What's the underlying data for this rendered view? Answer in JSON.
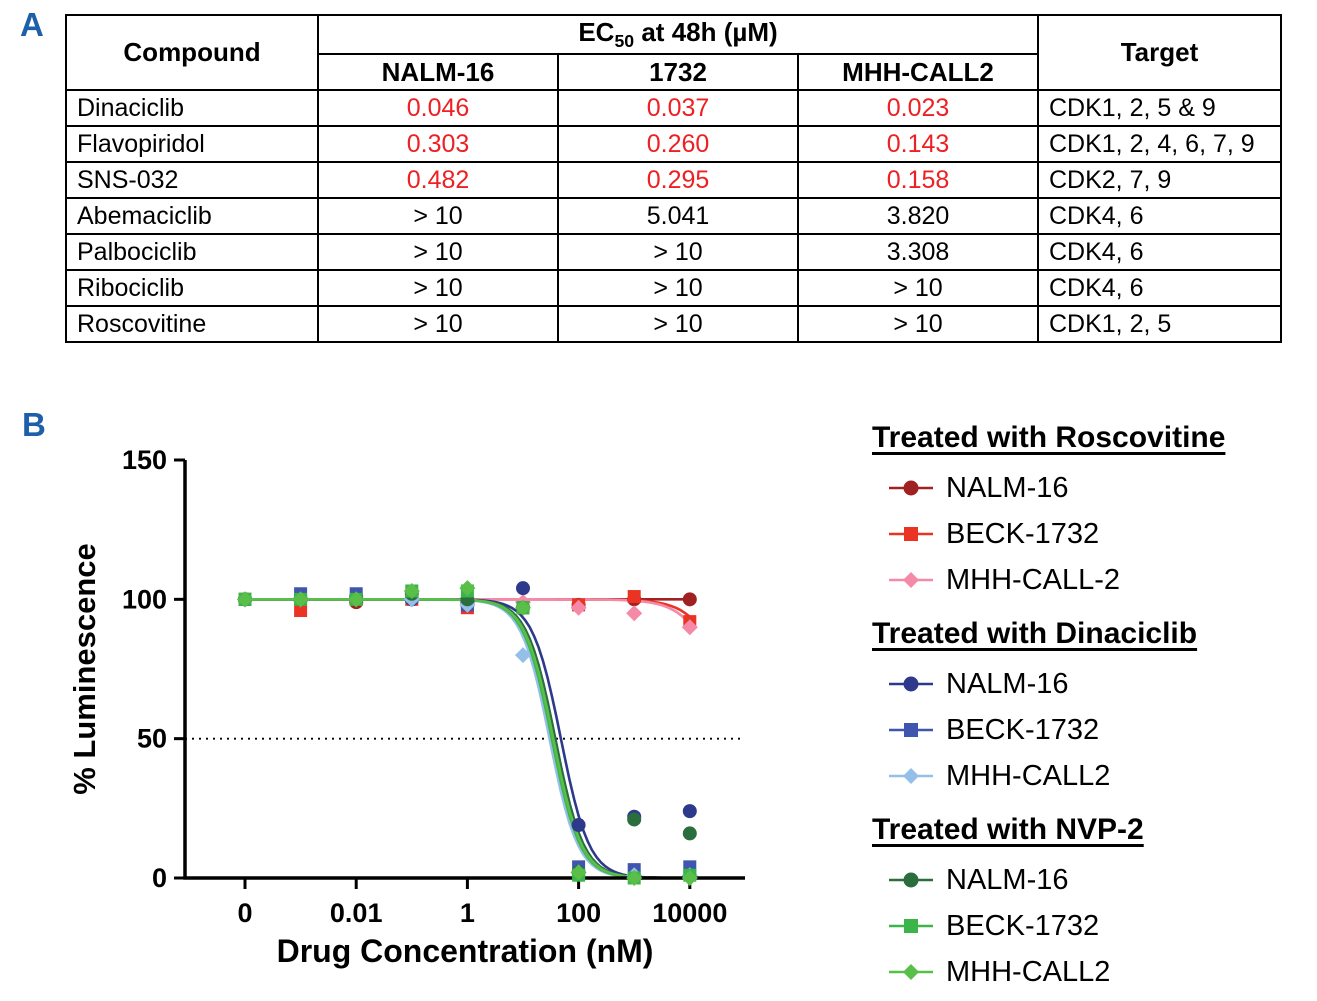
{
  "panels": {
    "a": "A",
    "b": "B"
  },
  "colors": {
    "panel_label_blue": "#1e5fa9",
    "highlight_red": "#ed2024",
    "axis_black": "#000000"
  },
  "table": {
    "header": {
      "compound": "Compound",
      "ec50_prefix": "EC",
      "ec50_sub": "50",
      "ec50_suffix": " at 48h (µM)",
      "cell_lines": [
        "NALM-16",
        "1732",
        "MHH-CALL2"
      ],
      "target": "Target"
    },
    "rows": [
      {
        "compound": "Dinaciclib",
        "values": [
          {
            "v": "0.046",
            "red": true
          },
          {
            "v": "0.037",
            "red": true
          },
          {
            "v": "0.023",
            "red": true
          }
        ],
        "target": "CDK1, 2, 5 & 9"
      },
      {
        "compound": "Flavopiridol",
        "values": [
          {
            "v": "0.303",
            "red": true
          },
          {
            "v": "0.260",
            "red": true
          },
          {
            "v": "0.143",
            "red": true
          }
        ],
        "target": "CDK1, 2, 4, 6, 7, 9"
      },
      {
        "compound": "SNS-032",
        "values": [
          {
            "v": "0.482",
            "red": true
          },
          {
            "v": "0.295",
            "red": true
          },
          {
            "v": "0.158",
            "red": true
          }
        ],
        "target": "CDK2, 7, 9"
      },
      {
        "compound": "Abemaciclib",
        "values": [
          {
            "v": "> 10",
            "red": false
          },
          {
            "v": "5.041",
            "red": false
          },
          {
            "v": "3.820",
            "red": false
          }
        ],
        "target": "CDK4, 6"
      },
      {
        "compound": "Palbociclib",
        "values": [
          {
            "v": "> 10",
            "red": false
          },
          {
            "v": "> 10",
            "red": false
          },
          {
            "v": "3.308",
            "red": false
          }
        ],
        "target": "CDK4, 6"
      },
      {
        "compound": "Ribociclib",
        "values": [
          {
            "v": "> 10",
            "red": false
          },
          {
            "v": "> 10",
            "red": false
          },
          {
            "v": "> 10",
            "red": false
          }
        ],
        "target": "CDK4, 6"
      },
      {
        "compound": "Roscovitine",
        "values": [
          {
            "v": "> 10",
            "red": false
          },
          {
            "v": "> 10",
            "red": false
          },
          {
            "v": "> 10",
            "red": false
          }
        ],
        "target": "CDK1, 2, 5"
      }
    ]
  },
  "chart_data": {
    "type": "scatter",
    "title": "",
    "xlabel": "Drug Concentration (nM)",
    "ylabel": "% Luminescence",
    "x_scale": "log-with-zero",
    "x_nM": [
      0,
      0.001,
      0.01,
      0.1,
      1,
      10,
      100,
      1000,
      10000
    ],
    "x_ticks": [
      {
        "label": "0",
        "pos": 0
      },
      {
        "label": "0.01",
        "pos": 2
      },
      {
        "label": "1",
        "pos": 4
      },
      {
        "label": "100",
        "pos": 6
      },
      {
        "label": "10000",
        "pos": 8
      }
    ],
    "y_ticks": [
      0,
      50,
      100,
      150
    ],
    "ylim": [
      0,
      150
    ],
    "reference_line_y": 50,
    "grid": false,
    "legend_position": "right",
    "groups": [
      {
        "treatment": "Treated with Roscovitine",
        "series": [
          {
            "name": "NALM-16",
            "marker": "circle",
            "color": "#a02122",
            "values": [
              100,
              100,
              99,
              100,
              98,
              97,
              98,
              100,
              100
            ],
            "fit": null
          },
          {
            "name": "BECK-1732",
            "marker": "square",
            "color": "#ea3323",
            "values": [
              100,
              96,
              100,
              100,
              97,
              97,
              98,
              101,
              92
            ],
            "fit": {
              "top": 100,
              "bottom": 0,
              "ec50": 80000,
              "hill": 1.3
            }
          },
          {
            "name": "MHH-CALL-2",
            "marker": "diamond",
            "color": "#f589a8",
            "values": [
              100,
              100,
              100,
              100,
              100,
              99,
              97,
              95,
              90
            ],
            "fit": {
              "top": 100,
              "bottom": 0,
              "ec50": 60000,
              "hill": 1.3
            }
          }
        ]
      },
      {
        "treatment": "Treated with Dinaciclib",
        "series": [
          {
            "name": "NALM-16",
            "marker": "circle",
            "color": "#2d3a8c",
            "values": [
              100,
              100,
              101,
              100,
              99,
              104,
              19,
              22,
              24
            ],
            "fit": {
              "top": 100,
              "bottom": 0,
              "ec50": 48,
              "hill": 1.7
            }
          },
          {
            "name": "BECK-1732",
            "marker": "square",
            "color": "#3f55ae",
            "values": [
              100,
              102,
              102,
              101,
              98,
              97,
              4,
              3,
              4
            ],
            "fit": {
              "top": 100,
              "bottom": 0,
              "ec50": 38,
              "hill": 1.7
            }
          },
          {
            "name": "MHH-CALL2",
            "marker": "diamond",
            "color": "#94bfe8",
            "values": [
              100,
              100,
              100,
              100,
              98,
              80,
              2,
              1,
              1
            ],
            "fit": {
              "top": 100,
              "bottom": 0,
              "ec50": 30,
              "hill": 1.7
            }
          }
        ]
      },
      {
        "treatment": "Treated with NVP-2",
        "series": [
          {
            "name": "NALM-16",
            "marker": "circle",
            "color": "#2b6e3e",
            "values": [
              100,
              100,
              100,
              102,
              100,
              97,
              2,
              21,
              16
            ],
            "fit": {
              "top": 100,
              "bottom": 0,
              "ec50": 38,
              "hill": 1.7
            }
          },
          {
            "name": "BECK-1732",
            "marker": "square",
            "color": "#3bb54a",
            "values": [
              100,
              100,
              100,
              103,
              103,
              97,
              1,
              0,
              1
            ],
            "fit": {
              "top": 100,
              "bottom": 0,
              "ec50": 33,
              "hill": 1.7
            }
          },
          {
            "name": "MHH-CALL2",
            "marker": "diamond",
            "color": "#5abf49",
            "values": [
              100,
              100,
              100,
              103,
              104,
              97,
              2,
              0,
              0
            ],
            "fit": {
              "top": 100,
              "bottom": 0,
              "ec50": 35,
              "hill": 1.7
            }
          }
        ]
      }
    ]
  }
}
